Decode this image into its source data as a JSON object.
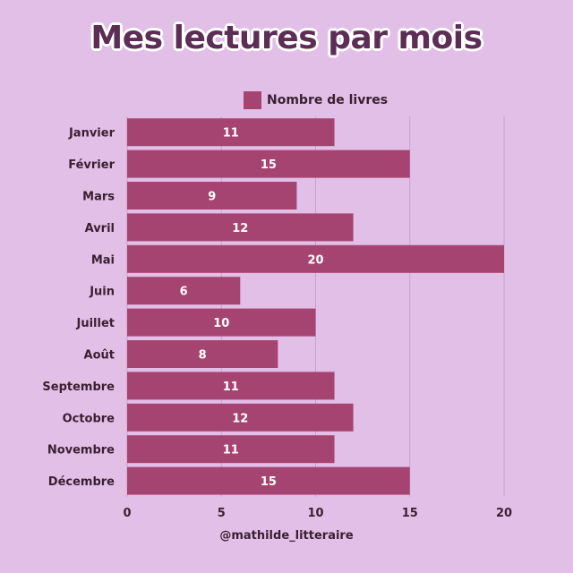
{
  "chart_data": {
    "type": "bar",
    "orientation": "horizontal",
    "title": "Mes lectures par mois",
    "categories": [
      "Janvier",
      "Février",
      "Mars",
      "Avril",
      "Mai",
      "Juin",
      "Juillet",
      "Août",
      "Septembre",
      "Octobre",
      "Novembre",
      "Décembre"
    ],
    "series": [
      {
        "name": "Nombre de livres",
        "values": [
          11,
          15,
          9,
          12,
          20,
          6,
          10,
          8,
          11,
          12,
          11,
          15
        ]
      }
    ],
    "xlim": [
      0,
      20
    ],
    "xticks": [
      0,
      5,
      10,
      15,
      20
    ],
    "grid": true,
    "legend": "top",
    "data_labels": true
  },
  "colors": {
    "background": "#e2bfe6",
    "bar": "#a64471",
    "title": "#5c2d55",
    "text": "#3a1f33",
    "grid": "#c9a2cc"
  },
  "footer": {
    "credit": "@mathilde_litteraire"
  }
}
